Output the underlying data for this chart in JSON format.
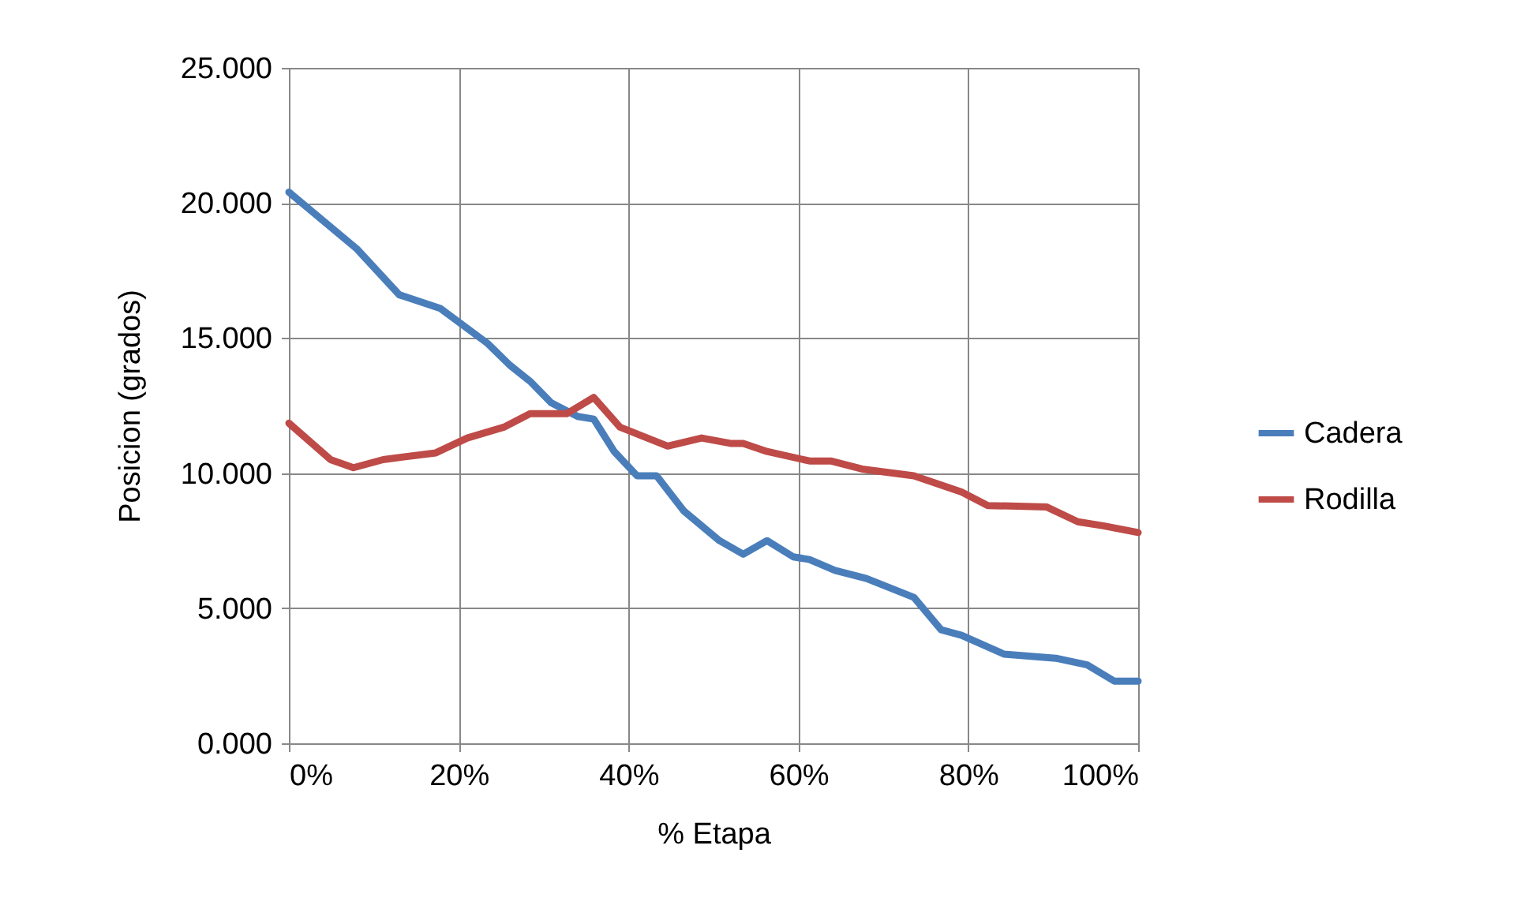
{
  "chart_data": {
    "type": "line",
    "xlabel": "% Etapa",
    "ylabel": "Posicion (grados)",
    "xlim": [
      0,
      100
    ],
    "ylim": [
      0,
      25
    ],
    "xticks": [
      {
        "value": 0,
        "label": "0%"
      },
      {
        "value": 20,
        "label": "20%"
      },
      {
        "value": 40,
        "label": "40%"
      },
      {
        "value": 60,
        "label": "60%"
      },
      {
        "value": 80,
        "label": "80%"
      },
      {
        "value": 100,
        "label": "100%"
      }
    ],
    "yticks": [
      {
        "value": 0,
        "label": "0.000"
      },
      {
        "value": 5,
        "label": "5.000"
      },
      {
        "value": 10,
        "label": "10.000"
      },
      {
        "value": 15,
        "label": "15.000"
      },
      {
        "value": 20,
        "label": "20.000"
      },
      {
        "value": 25,
        "label": "25.000"
      }
    ],
    "grid": true,
    "legend": "right",
    "marker": "none",
    "line_style": "solid",
    "series": [
      {
        "name": "Cadera",
        "color": "#4a7ebb",
        "x": [
          0,
          8,
          13,
          17.8,
          23.4,
          26,
          28.4,
          30.9,
          34,
          35.9,
          38.3,
          41,
          43.3,
          46.5,
          50.7,
          53.5,
          56.3,
          59.4,
          61.3,
          64.3,
          68,
          73.6,
          76.8,
          79.2,
          84.2,
          90.3,
          94,
          97.2,
          100
        ],
        "values": [
          20.4,
          18.3,
          16.6,
          16.1,
          14.8,
          14.0,
          13.4,
          12.6,
          12.1,
          12.0,
          10.8,
          9.9,
          9.9,
          8.6,
          7.5,
          7.0,
          7.5,
          6.9,
          6.8,
          6.4,
          6.1,
          5.4,
          4.2,
          4.0,
          3.3,
          3.15,
          2.9,
          2.3,
          2.3
        ]
      },
      {
        "name": "Rodilla",
        "color": "#be4b48",
        "x": [
          0,
          4.9,
          7.6,
          11.1,
          17.3,
          21,
          25.3,
          28.4,
          32.7,
          35.9,
          39,
          44.6,
          48.6,
          52,
          53.5,
          56.3,
          61.3,
          63.8,
          67.5,
          73.6,
          79.2,
          82.3,
          89.2,
          92.9,
          95.9,
          100
        ],
        "values": [
          11.85,
          10.5,
          10.2,
          10.5,
          10.75,
          11.3,
          11.7,
          12.2,
          12.2,
          12.8,
          11.7,
          11.0,
          11.3,
          11.1,
          11.1,
          10.8,
          10.45,
          10.45,
          10.15,
          9.9,
          9.3,
          8.8,
          8.75,
          8.2,
          8.05,
          7.8
        ]
      }
    ]
  }
}
